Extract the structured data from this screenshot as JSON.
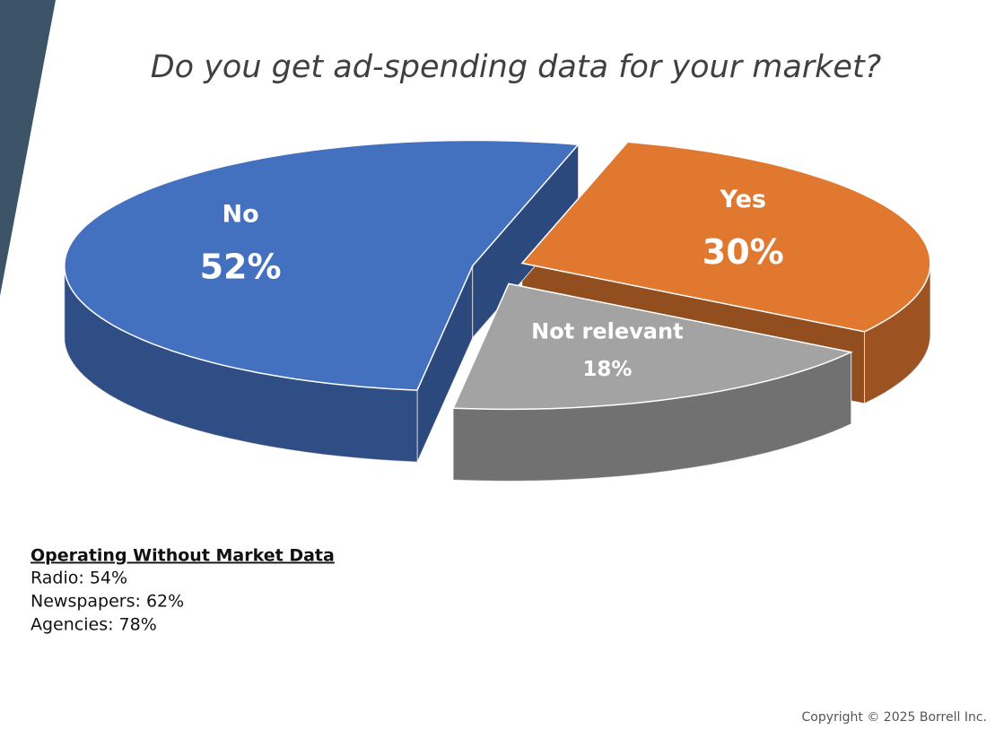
{
  "chart_data": {
    "type": "pie3d",
    "title": "Do you get ad-spending data for your market?",
    "categories": [
      "Yes",
      "Not relevant",
      "No"
    ],
    "values": [
      30,
      18,
      52
    ],
    "value_labels": [
      "30%",
      "18%",
      "52%"
    ],
    "colors": [
      "#e07830",
      "#a3a3a3",
      "#4470c0"
    ]
  },
  "notes": {
    "heading": "Operating Without Market Data",
    "lines": [
      "Radio: 54%",
      "Newspapers: 62%",
      "Agencies: 78%"
    ]
  },
  "footer": "Copyright © 2025 Borrell Inc."
}
